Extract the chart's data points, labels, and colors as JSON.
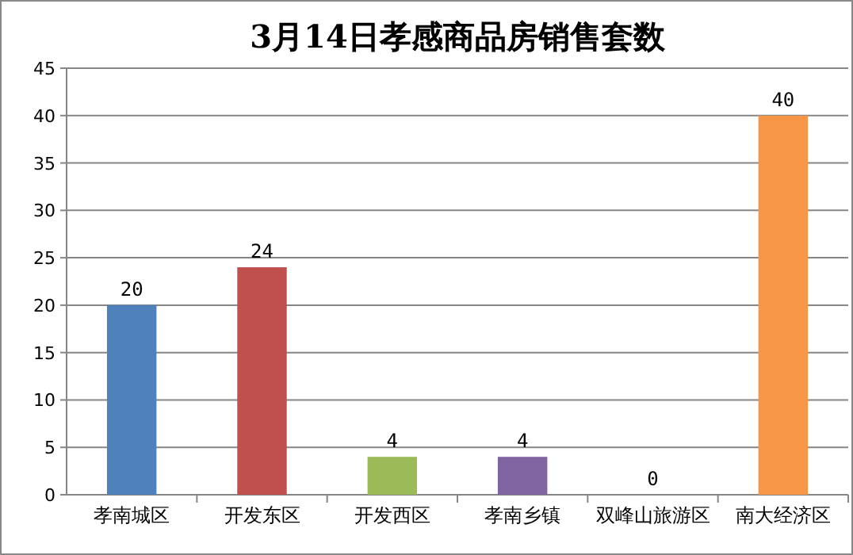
{
  "chart_data": {
    "type": "bar",
    "title": "3月14日孝感商品房销售套数",
    "categories": [
      "孝南城区",
      "开发东区",
      "开发西区",
      "孝南乡镇",
      "双峰山旅游区",
      "南大经济区"
    ],
    "values": [
      20,
      24,
      4,
      4,
      0,
      40
    ],
    "colors": [
      "#4f81bd",
      "#c0504d",
      "#9bbb59",
      "#8064a2",
      "#4bacc6",
      "#f79646"
    ],
    "ylim": [
      0,
      45
    ],
    "yticks": [
      0,
      5,
      10,
      15,
      20,
      25,
      30,
      35,
      40,
      45
    ],
    "grid": "y",
    "data_labels": true
  }
}
